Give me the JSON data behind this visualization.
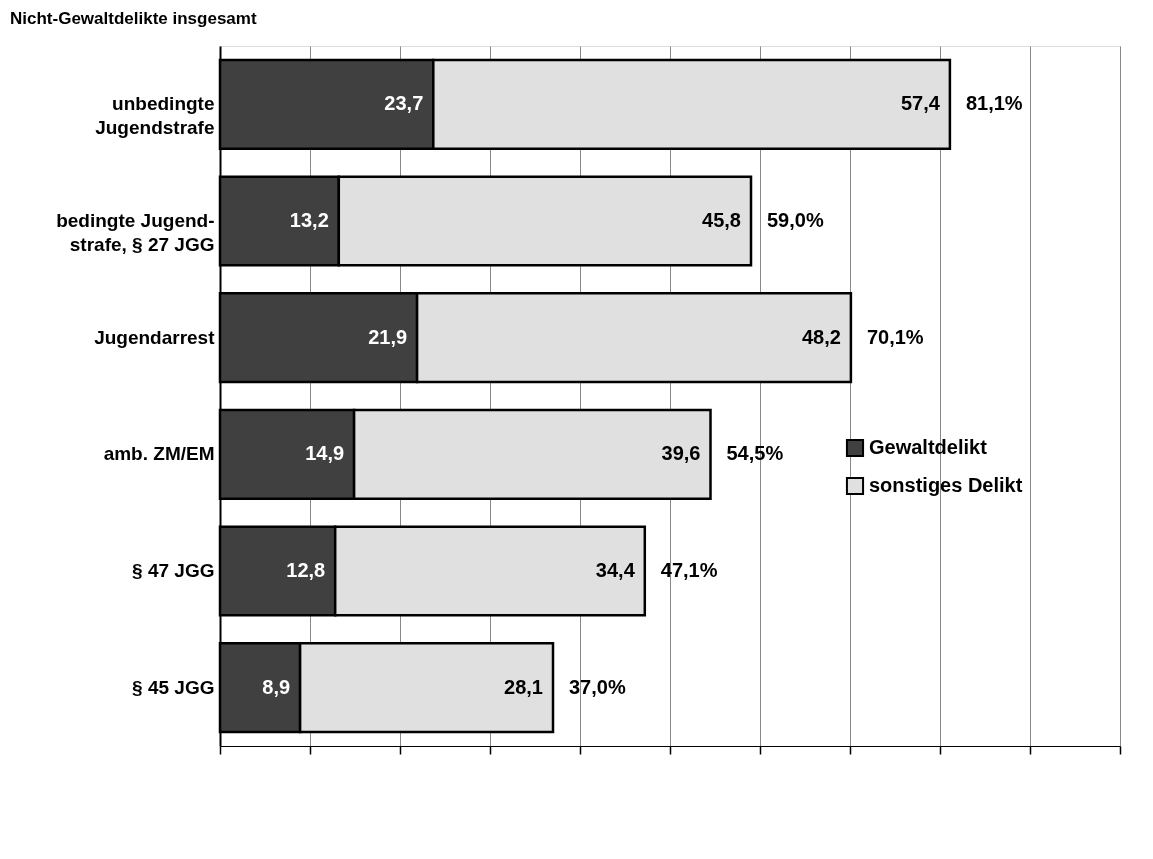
{
  "chart_data": {
    "type": "bar",
    "orientation": "horizontal",
    "stacked": true,
    "title": "Nicht-Gewaltdelikte insgesamt",
    "categories": [
      "unbedingte\nJugendstrafe",
      "bedingte Jugend-\nstrafe, § 27 JGG",
      "Jugendarrest",
      "amb. ZM/EM",
      "§ 47 JGG",
      "§ 45 JGG"
    ],
    "series": [
      {
        "name": "Gewaltdelikt",
        "color": "#404040",
        "values": [
          23.7,
          13.2,
          21.9,
          14.9,
          12.8,
          8.9
        ],
        "value_labels": [
          "23,7",
          "13,2",
          "21,9",
          "14,9",
          "12,8",
          "8,9"
        ]
      },
      {
        "name": "sonstiges Delikt",
        "color": "#e0e0e0",
        "values": [
          57.4,
          45.8,
          48.2,
          39.6,
          34.4,
          28.1
        ],
        "value_labels": [
          "57,4",
          "45,8",
          "48,2",
          "39,6",
          "34,4",
          "28,1"
        ]
      }
    ],
    "totals": [
      "81,1%",
      "59,0%",
      "70,1%",
      "54,5%",
      "47,1%",
      "37,0%"
    ],
    "xlim": [
      0,
      100
    ],
    "xticks": [
      {
        "value": 0,
        "label": null
      },
      {
        "value": 10,
        "label": null
      },
      {
        "value": 20,
        "label": null
      },
      {
        "value": 30,
        "label": null
      },
      {
        "value": 40,
        "label": null
      },
      {
        "value": 50,
        "label": null
      },
      {
        "value": 60,
        "label": null
      },
      {
        "value": 70,
        "label": null
      },
      {
        "value": 80,
        "label": null
      },
      {
        "value": 90,
        "label": null
      },
      {
        "value": 100,
        "label": null
      }
    ],
    "tick_labels": "y",
    "grid": "x",
    "legend": "right"
  }
}
